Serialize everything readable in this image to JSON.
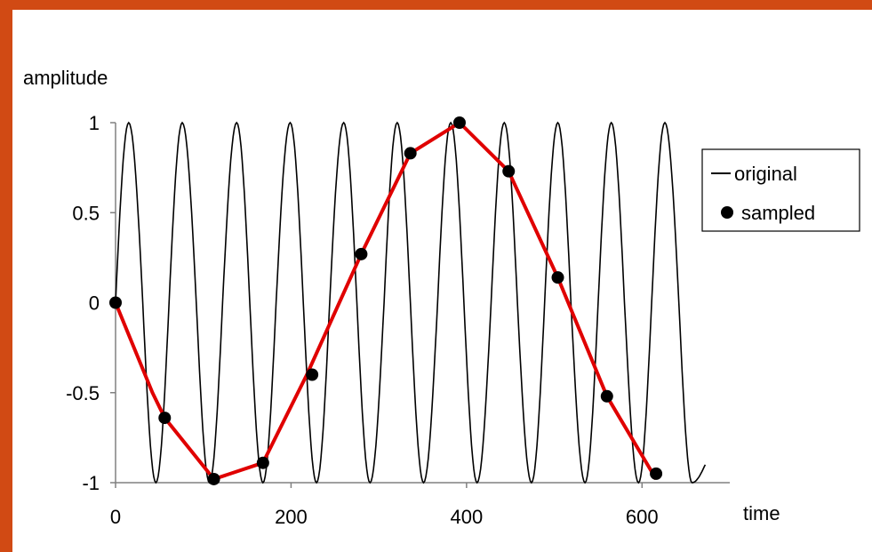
{
  "chart_data": {
    "type": "line",
    "title": "",
    "xlabel": "time",
    "ylabel": "amplitude",
    "xlim": [
      0,
      700
    ],
    "ylim": [
      -1,
      1
    ],
    "x_ticks": [
      "0",
      "200",
      "400",
      "600"
    ],
    "y_ticks": [
      "1",
      "0.5",
      "0",
      "-0.5",
      "-1"
    ],
    "grid": false,
    "legend_position": "right",
    "series": [
      {
        "name": "original",
        "kind": "line",
        "color": "#000000",
        "x": [
          0,
          15,
          31,
          46,
          61,
          76,
          92,
          107,
          122,
          138,
          153,
          168,
          183,
          199,
          214,
          229,
          244,
          260,
          275,
          290,
          306,
          321,
          336,
          351,
          367,
          382,
          397,
          412,
          428,
          443,
          458,
          474,
          489,
          504,
          519,
          535,
          550,
          565,
          580,
          596,
          611,
          626,
          642,
          657,
          672
        ],
        "y": [
          0,
          1,
          0,
          -1,
          0,
          1,
          0,
          -1,
          0,
          1,
          0,
          -1,
          0,
          1,
          0,
          -1,
          0,
          1,
          0,
          -1,
          0,
          1,
          0,
          -1,
          0,
          1,
          0,
          -1,
          0,
          1,
          0,
          -1,
          0,
          1,
          0,
          -1,
          0,
          1,
          0,
          -1,
          0,
          1,
          0,
          -1,
          -0.9
        ]
      },
      {
        "name": "sampled",
        "kind": "points",
        "color": "#000000",
        "x": [
          0,
          56,
          112,
          168,
          224,
          280,
          336,
          392,
          448,
          504,
          560,
          616
        ],
        "y": [
          0,
          -0.64,
          -0.98,
          -0.89,
          -0.4,
          0.27,
          0.83,
          1.0,
          0.73,
          0.14,
          -0.52,
          -0.95
        ]
      },
      {
        "name": "",
        "kind": "line",
        "color": "#e00000",
        "x": [
          0,
          42,
          56,
          112,
          168,
          218,
          280,
          336,
          392,
          448,
          504,
          560,
          616
        ],
        "y": [
          0,
          -0.5,
          -0.64,
          -0.98,
          -0.89,
          -0.4,
          0.27,
          0.83,
          1.0,
          0.73,
          0.14,
          -0.52,
          -0.98
        ]
      }
    ],
    "legend": [
      "original",
      "sampled"
    ]
  }
}
